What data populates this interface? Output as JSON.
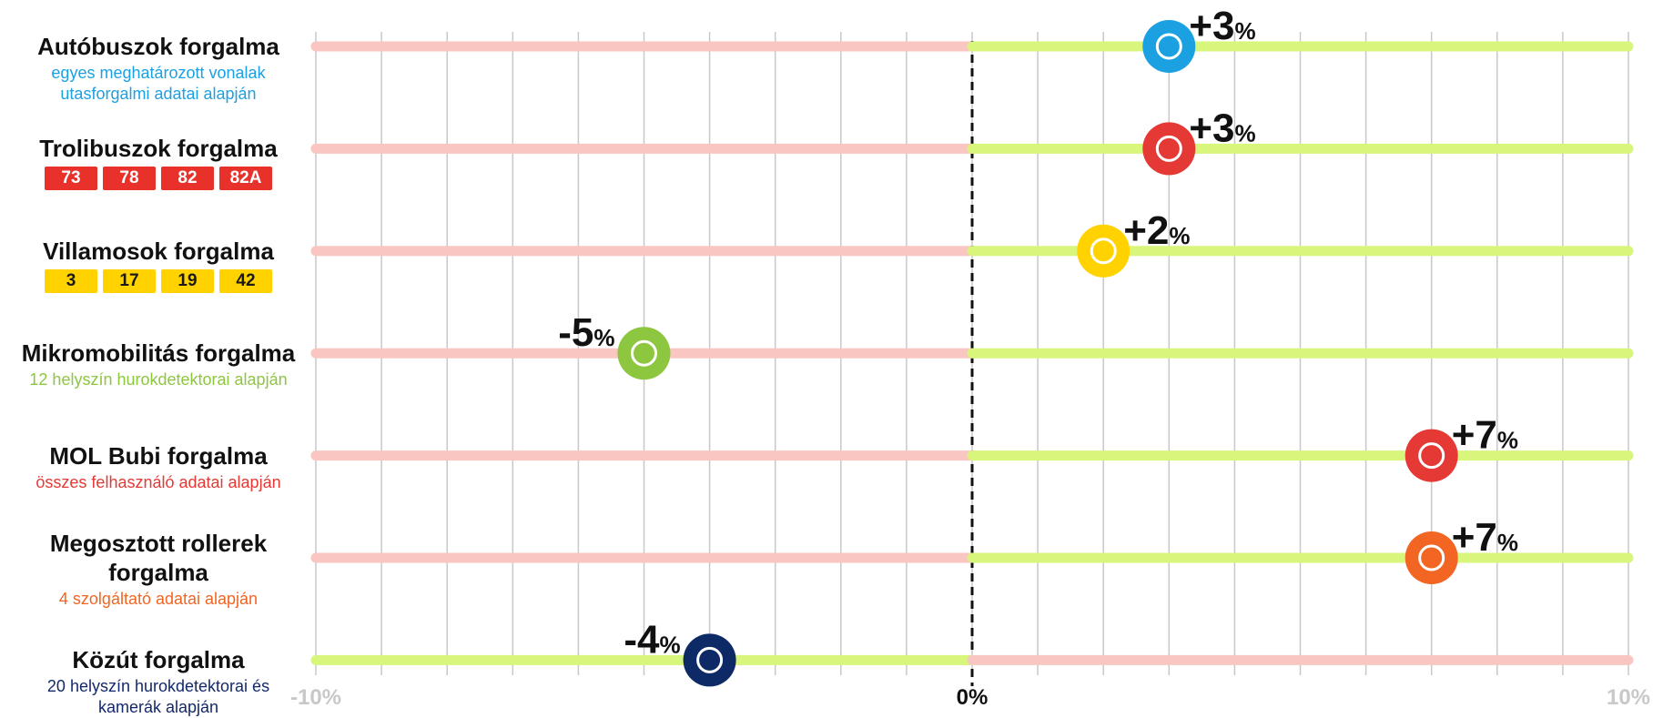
{
  "chart_data": {
    "type": "dot",
    "rows": [
      {
        "name": "Autóbuszok forgalma",
        "subtitle": "egyes meghatározott vonalak utasforgalmi adatai alapján",
        "subtitle_color": "#1ba1e2",
        "color": "#1ba1e2",
        "value": 3,
        "value_label": "+3%",
        "reversed": false
      },
      {
        "name": "Trolibuszok forgalma",
        "badges": [
          "73",
          "78",
          "82",
          "82A"
        ],
        "badge_color": "#e8312a",
        "badge_text_color": "#ffffff",
        "color": "#e53935",
        "value": 3,
        "value_label": "+3%",
        "reversed": false
      },
      {
        "name": "Villamosok forgalma",
        "badges": [
          "3",
          "17",
          "19",
          "42"
        ],
        "badge_color": "#ffd200",
        "badge_text_color": "#1a1a1a",
        "color": "#ffd200",
        "value": 2,
        "value_label": "+2%",
        "reversed": false
      },
      {
        "name": "Mikromobilitás forgalma",
        "subtitle": "12 helyszín hurokdetektorai alapján",
        "subtitle_color": "#8dc63f",
        "color": "#8dc63f",
        "value": -5,
        "value_label": "-5%",
        "reversed": false
      },
      {
        "name": "MOL Bubi forgalma",
        "subtitle": "összes felhasználó adatai alapján",
        "subtitle_color": "#e53935",
        "color": "#e53935",
        "value": 7,
        "value_label": "+7%",
        "reversed": false
      },
      {
        "name": "Megosztott rollerek forgalma",
        "subtitle": "4 szolgáltató adatai alapján",
        "subtitle_color": "#f26522",
        "color": "#f26522",
        "value": 7,
        "value_label": "+7%",
        "reversed": false
      },
      {
        "name": "Közút forgalma",
        "subtitle": "20 helyszín hurokdetektorai és kamerák alapján",
        "subtitle_color": "#13296b",
        "color": "#0d2a66",
        "value": -4,
        "value_label": "-4%",
        "reversed": true
      }
    ],
    "xlim": [
      -10,
      10
    ],
    "xticks": [
      {
        "value": -10,
        "label": "-10%"
      },
      {
        "value": 0,
        "label": "0%"
      },
      {
        "value": 10,
        "label": "10%"
      }
    ],
    "grid_xticks": [
      -10,
      -9,
      -8,
      -7,
      -6,
      -5,
      -4,
      -3,
      -2,
      -1,
      0,
      1,
      2,
      3,
      4,
      5,
      6,
      7,
      8,
      9,
      10
    ],
    "negative_color": "#f9c6c1",
    "positive_color": "#d8f57c"
  }
}
